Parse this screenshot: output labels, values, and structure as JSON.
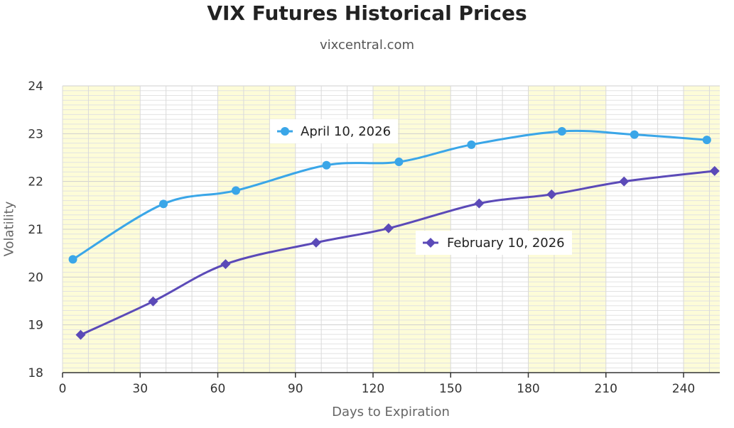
{
  "chart_data": {
    "type": "line",
    "title": "VIX Futures Historical Prices",
    "subtitle": "vixcentral.com",
    "xlabel": "Days to Expiration",
    "ylabel": "Volatility",
    "xlim": [
      0,
      254
    ],
    "ylim": [
      18,
      24
    ],
    "x_ticks": [
      0,
      30,
      60,
      90,
      120,
      150,
      180,
      210,
      240
    ],
    "y_ticks": [
      18,
      19,
      20,
      21,
      22,
      23,
      24
    ],
    "grid": true,
    "band_colors": [
      "#fdfcd8",
      "#ffffff"
    ],
    "series": [
      {
        "name": "April 10, 2026",
        "color": "#3aa6e8",
        "marker": "circle",
        "points": [
          {
            "x": 4,
            "y": 20.37
          },
          {
            "x": 39,
            "y": 21.53
          },
          {
            "x": 67,
            "y": 21.81
          },
          {
            "x": 102,
            "y": 22.34
          },
          {
            "x": 130,
            "y": 22.41
          },
          {
            "x": 158,
            "y": 22.77
          },
          {
            "x": 193,
            "y": 23.05
          },
          {
            "x": 221,
            "y": 22.98
          },
          {
            "x": 249,
            "y": 22.87
          }
        ]
      },
      {
        "name": "February 10, 2026",
        "color": "#5b4ab8",
        "marker": "diamond",
        "points": [
          {
            "x": 7,
            "y": 18.79
          },
          {
            "x": 35,
            "y": 19.49
          },
          {
            "x": 63,
            "y": 20.27
          },
          {
            "x": 98,
            "y": 20.72
          },
          {
            "x": 126,
            "y": 21.02
          },
          {
            "x": 161,
            "y": 21.54
          },
          {
            "x": 189,
            "y": 21.73
          },
          {
            "x": 217,
            "y": 22.0
          },
          {
            "x": 252,
            "y": 22.22
          }
        ]
      }
    ],
    "legend_placement": "inside, near each series"
  }
}
